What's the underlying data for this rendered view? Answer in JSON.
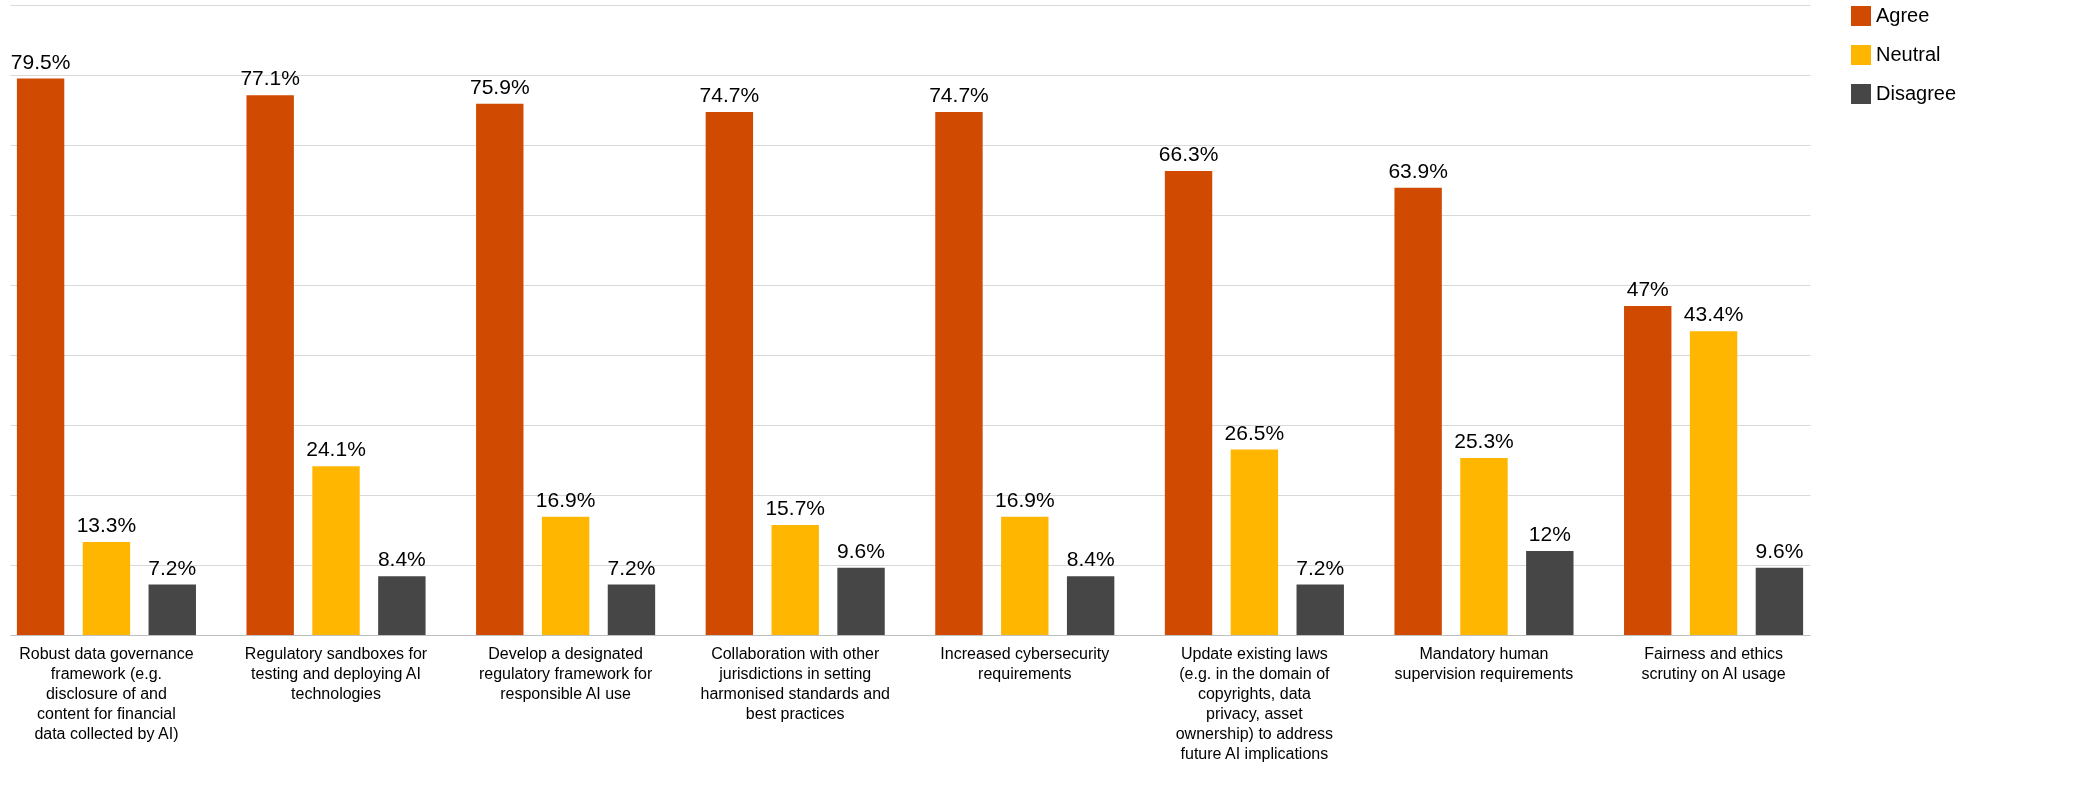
{
  "chart_data": {
    "type": "bar",
    "categories": [
      "Robust data governance framework (e.g. disclosure of and content for financial data collected by AI)",
      "Regulatory sandboxes for testing and deploying AI technologies",
      "Develop a designated regulatory framework for responsible AI use",
      "Collaboration with other jurisdictions in setting harmonised standards and best practices",
      "Increased cybersecurity requirements",
      "Update existing laws (e.g. in the domain of copyrights, data privacy, asset ownership) to address future AI implications",
      "Mandatory human supervision requirements",
      "Fairness and ethics scrutiny on AI usage"
    ],
    "series": [
      {
        "name": "Agree",
        "color": "#d04a02",
        "values": [
          79.5,
          77.1,
          75.9,
          74.7,
          74.7,
          66.3,
          63.9,
          47
        ],
        "value_labels": [
          "79.5%",
          "77.1%",
          "75.9%",
          "74.7%",
          "74.7%",
          "66.3%",
          "63.9%",
          "47%"
        ]
      },
      {
        "name": "Neutral",
        "color": "#ffb600",
        "values": [
          13.3,
          24.1,
          16.9,
          15.7,
          16.9,
          26.5,
          25.3,
          43.4
        ],
        "value_labels": [
          "13.3%",
          "24.1%",
          "16.9%",
          "15.7%",
          "16.9%",
          "26.5%",
          "25.3%",
          "43.4%"
        ]
      },
      {
        "name": "Disagree",
        "color": "#464646",
        "values": [
          7.2,
          8.4,
          7.2,
          9.6,
          8.4,
          7.2,
          12,
          9.6
        ],
        "value_labels": [
          "7.2%",
          "8.4%",
          "7.2%",
          "9.6%",
          "8.4%",
          "7.2%",
          "12%",
          "9.6%"
        ]
      }
    ],
    "ylim": [
      0,
      90
    ],
    "yticks": [
      {
        "value": 0,
        "label": null
      },
      {
        "value": 10,
        "label": null
      },
      {
        "value": 20,
        "label": null
      },
      {
        "value": 30,
        "label": null
      },
      {
        "value": 40,
        "label": null
      },
      {
        "value": 50,
        "label": null
      },
      {
        "value": 60,
        "label": null
      },
      {
        "value": 70,
        "label": null
      },
      {
        "value": 80,
        "label": null
      },
      {
        "value": 90,
        "label": null
      }
    ],
    "tick_labels": "x",
    "grid": "y",
    "legend": "right"
  }
}
